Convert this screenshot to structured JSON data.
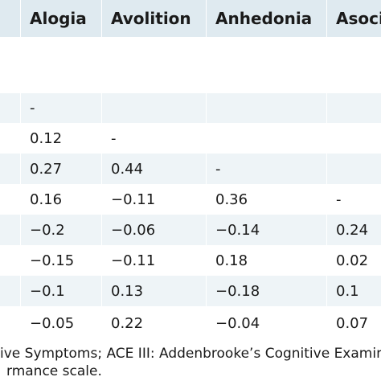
{
  "table": {
    "headers": [
      "Alogia",
      "Avolition",
      "Anhedonia",
      "Asoci"
    ],
    "rows": [
      [
        "",
        "",
        "",
        ""
      ],
      [
        "-",
        "",
        "",
        ""
      ],
      [
        "0.12",
        "-",
        "",
        ""
      ],
      [
        "0.27",
        "0.44",
        "-",
        ""
      ],
      [
        "0.16",
        "−0.11",
        "0.36",
        "-"
      ],
      [
        "−0.2",
        "−0.06",
        "−0.14",
        "0.24"
      ],
      [
        "−0.15",
        "−0.11",
        "0.18",
        "0.02"
      ],
      [
        "−0.1",
        "0.13",
        "−0.18",
        "0.1"
      ],
      [
        "−0.05",
        "0.22",
        "−0.04",
        "0.07"
      ]
    ]
  },
  "footnote": {
    "line1": "ive Symptoms; ACE III: Addenbrooke’s Cognitive Examina",
    "line2": "rmance scale."
  },
  "colors": {
    "header_bg": "#dfeaf0",
    "shaded_row": "#eef4f7",
    "divider": "#ffffff"
  }
}
